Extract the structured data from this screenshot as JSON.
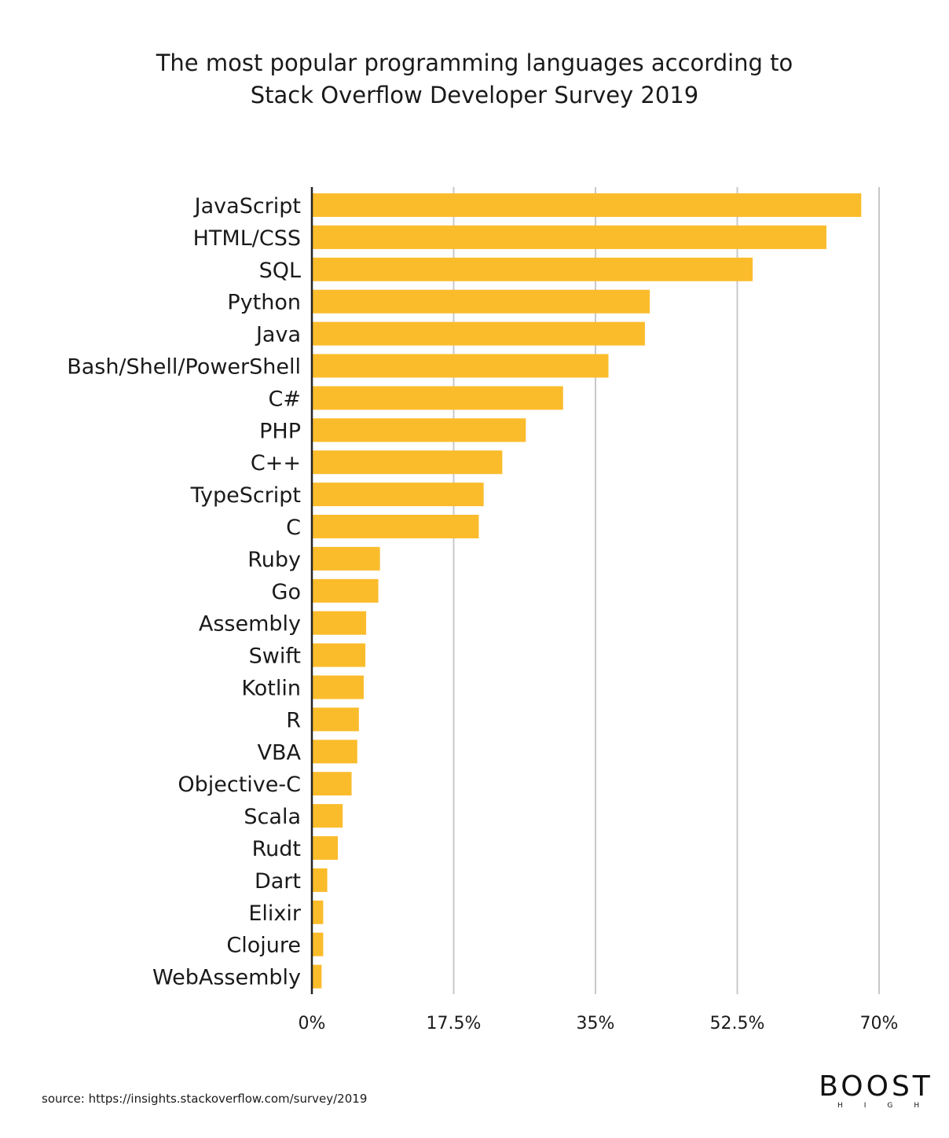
{
  "chart_data": {
    "type": "bar",
    "orientation": "horizontal",
    "title_line1": "The most popular programming languages according to",
    "title_line2": "Stack Overflow Developer Survey 2019",
    "categories": [
      "JavaScript",
      "HTML/CSS",
      "SQL",
      "Python",
      "Java",
      "Bash/Shell/PowerShell",
      "C#",
      "PHP",
      "C++",
      "TypeScript",
      "C",
      "Ruby",
      "Go",
      "Assembly",
      "Swift",
      "Kotlin",
      "R",
      "VBA",
      "Objective-C",
      "Scala",
      "Rudt",
      "Dart",
      "Elixir",
      "Clojure",
      "WebAssembly"
    ],
    "values": [
      67.8,
      63.5,
      54.4,
      41.7,
      41.1,
      36.6,
      31.0,
      26.4,
      23.5,
      21.2,
      20.6,
      8.4,
      8.2,
      6.7,
      6.6,
      6.4,
      5.8,
      5.6,
      4.9,
      3.8,
      3.2,
      1.9,
      1.4,
      1.4,
      1.2
    ],
    "xlim": [
      0,
      70
    ],
    "ticks": [
      0,
      17.5,
      35,
      52.5,
      70
    ],
    "tick_labels": [
      "0%",
      "17.5%",
      "35%",
      "52.5%",
      "70%"
    ],
    "grid": true,
    "bar_color": "#FBBC2C",
    "grid_color": "#c8c8c8",
    "axis_color": "#222222"
  },
  "footer": {
    "source": "source: https://insights.stackoverflow.com/survey/2019"
  },
  "brand": {
    "name": "BOOST",
    "sub": "HIGH"
  }
}
